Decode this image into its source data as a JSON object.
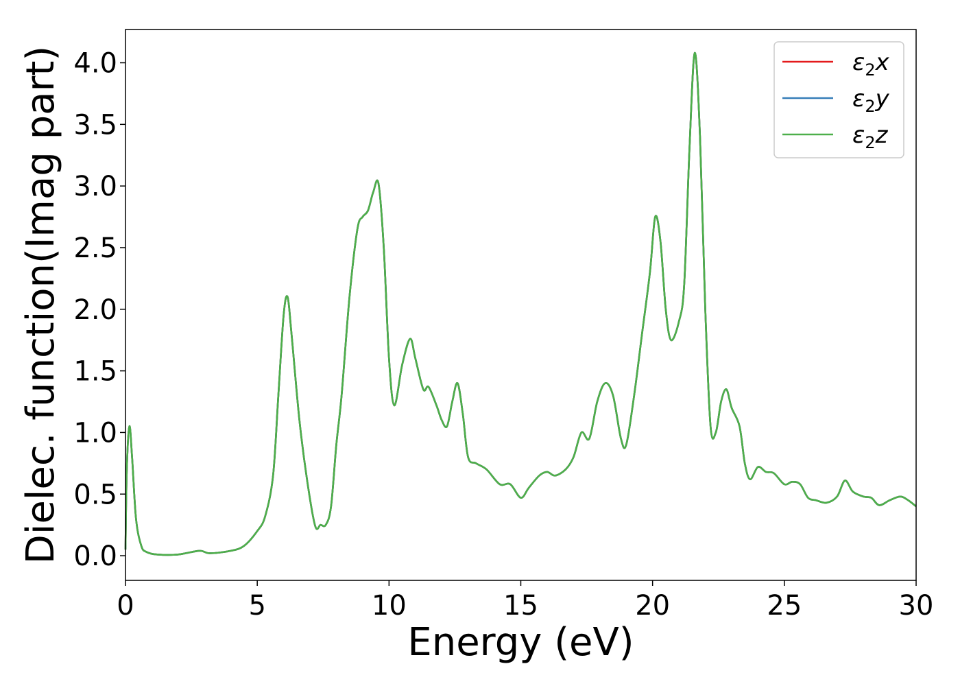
{
  "chart_data": {
    "type": "line",
    "title": "",
    "xlabel": "Energy (eV)",
    "ylabel": "Dielec. function(Imag part)",
    "xlim": [
      0,
      30
    ],
    "ylim": [
      -0.2,
      4.27
    ],
    "xticks": [
      0,
      5,
      10,
      15,
      20,
      25,
      30
    ],
    "yticks": [
      0.0,
      0.5,
      1.0,
      1.5,
      2.0,
      2.5,
      3.0,
      3.5,
      4.0
    ],
    "xtick_labels": [
      "0",
      "5",
      "10",
      "15",
      "20",
      "25",
      "30"
    ],
    "ytick_labels": [
      "0.0",
      "0.5",
      "1.0",
      "1.5",
      "2.0",
      "2.5",
      "3.0",
      "3.5",
      "4.0"
    ],
    "grid": false,
    "legend_position": "top-right",
    "x": [
      0.0,
      0.05,
      0.15,
      0.25,
      0.4,
      0.6,
      0.8,
      1.2,
      2.0,
      2.8,
      3.2,
      4.0,
      4.5,
      5.0,
      5.3,
      5.6,
      5.8,
      6.0,
      6.15,
      6.3,
      6.6,
      6.9,
      7.2,
      7.4,
      7.6,
      7.8,
      8.0,
      8.2,
      8.5,
      8.8,
      9.0,
      9.2,
      9.4,
      9.6,
      9.8,
      10.0,
      10.2,
      10.5,
      10.8,
      11.0,
      11.3,
      11.5,
      11.8,
      12.0,
      12.2,
      12.4,
      12.6,
      12.8,
      13.0,
      13.3,
      13.7,
      14.2,
      14.6,
      15.0,
      15.3,
      15.7,
      16.0,
      16.3,
      16.7,
      17.0,
      17.3,
      17.6,
      17.9,
      18.2,
      18.5,
      18.8,
      19.0,
      19.3,
      19.6,
      19.9,
      20.1,
      20.3,
      20.5,
      20.7,
      21.0,
      21.2,
      21.4,
      21.6,
      21.8,
      22.0,
      22.2,
      22.4,
      22.6,
      22.8,
      23.0,
      23.3,
      23.5,
      23.7,
      24.0,
      24.3,
      24.6,
      25.0,
      25.3,
      25.6,
      25.9,
      26.2,
      26.6,
      27.0,
      27.3,
      27.6,
      28.0,
      28.3,
      28.6,
      29.0,
      29.4,
      29.7,
      30.0
    ],
    "series": [
      {
        "name": "ε2x",
        "label_base": "ε",
        "label_sub": "2",
        "label_var": "x",
        "color": "#e41a1c",
        "values": [
          0.05,
          0.7,
          1.05,
          0.8,
          0.3,
          0.08,
          0.03,
          0.01,
          0.01,
          0.04,
          0.02,
          0.04,
          0.08,
          0.2,
          0.32,
          0.65,
          1.3,
          1.95,
          2.1,
          1.8,
          1.1,
          0.6,
          0.24,
          0.25,
          0.25,
          0.4,
          0.9,
          1.3,
          2.1,
          2.65,
          2.75,
          2.8,
          2.95,
          3.02,
          2.5,
          1.6,
          1.22,
          1.55,
          1.76,
          1.6,
          1.35,
          1.37,
          1.22,
          1.1,
          1.05,
          1.25,
          1.4,
          1.15,
          0.8,
          0.75,
          0.7,
          0.58,
          0.58,
          0.47,
          0.55,
          0.65,
          0.68,
          0.65,
          0.7,
          0.8,
          1.0,
          0.95,
          1.25,
          1.4,
          1.3,
          0.95,
          0.9,
          1.3,
          1.8,
          2.3,
          2.75,
          2.55,
          2.0,
          1.75,
          1.9,
          2.2,
          3.3,
          4.08,
          3.4,
          2.0,
          1.05,
          1.0,
          1.25,
          1.35,
          1.2,
          1.05,
          0.75,
          0.62,
          0.72,
          0.68,
          0.67,
          0.58,
          0.6,
          0.58,
          0.47,
          0.45,
          0.43,
          0.48,
          0.61,
          0.52,
          0.48,
          0.47,
          0.41,
          0.45,
          0.48,
          0.45,
          0.4
        ]
      },
      {
        "name": "ε2y",
        "label_base": "ε",
        "label_sub": "2",
        "label_var": "y",
        "color": "#377eb8",
        "values": [
          0.05,
          0.7,
          1.05,
          0.8,
          0.3,
          0.08,
          0.03,
          0.01,
          0.01,
          0.04,
          0.02,
          0.04,
          0.08,
          0.2,
          0.32,
          0.65,
          1.3,
          1.95,
          2.1,
          1.8,
          1.1,
          0.6,
          0.24,
          0.25,
          0.25,
          0.4,
          0.9,
          1.3,
          2.1,
          2.65,
          2.75,
          2.8,
          2.95,
          3.02,
          2.5,
          1.6,
          1.22,
          1.55,
          1.76,
          1.6,
          1.35,
          1.37,
          1.22,
          1.1,
          1.05,
          1.25,
          1.4,
          1.15,
          0.8,
          0.75,
          0.7,
          0.58,
          0.58,
          0.47,
          0.55,
          0.65,
          0.68,
          0.65,
          0.7,
          0.8,
          1.0,
          0.95,
          1.25,
          1.4,
          1.3,
          0.95,
          0.9,
          1.3,
          1.8,
          2.3,
          2.75,
          2.55,
          2.0,
          1.75,
          1.9,
          2.2,
          3.3,
          4.08,
          3.4,
          2.0,
          1.05,
          1.0,
          1.25,
          1.35,
          1.2,
          1.05,
          0.75,
          0.62,
          0.72,
          0.68,
          0.67,
          0.58,
          0.6,
          0.58,
          0.47,
          0.45,
          0.43,
          0.48,
          0.61,
          0.52,
          0.48,
          0.47,
          0.41,
          0.45,
          0.48,
          0.45,
          0.4
        ]
      },
      {
        "name": "ε2z",
        "label_base": "ε",
        "label_sub": "2",
        "label_var": "z",
        "color": "#4daf4a",
        "values": [
          0.05,
          0.7,
          1.05,
          0.8,
          0.3,
          0.08,
          0.03,
          0.01,
          0.01,
          0.04,
          0.02,
          0.04,
          0.08,
          0.2,
          0.32,
          0.65,
          1.3,
          1.95,
          2.1,
          1.8,
          1.1,
          0.6,
          0.24,
          0.25,
          0.25,
          0.4,
          0.9,
          1.3,
          2.1,
          2.65,
          2.75,
          2.8,
          2.95,
          3.02,
          2.5,
          1.6,
          1.22,
          1.55,
          1.76,
          1.6,
          1.35,
          1.37,
          1.22,
          1.1,
          1.05,
          1.25,
          1.4,
          1.15,
          0.8,
          0.75,
          0.7,
          0.58,
          0.58,
          0.47,
          0.55,
          0.65,
          0.68,
          0.65,
          0.7,
          0.8,
          1.0,
          0.95,
          1.25,
          1.4,
          1.3,
          0.95,
          0.9,
          1.3,
          1.8,
          2.3,
          2.75,
          2.55,
          2.0,
          1.75,
          1.9,
          2.2,
          3.3,
          4.08,
          3.4,
          2.0,
          1.05,
          1.0,
          1.25,
          1.35,
          1.2,
          1.05,
          0.75,
          0.62,
          0.72,
          0.68,
          0.67,
          0.58,
          0.6,
          0.58,
          0.47,
          0.45,
          0.43,
          0.48,
          0.61,
          0.52,
          0.48,
          0.47,
          0.41,
          0.45,
          0.48,
          0.45,
          0.4
        ]
      }
    ]
  }
}
